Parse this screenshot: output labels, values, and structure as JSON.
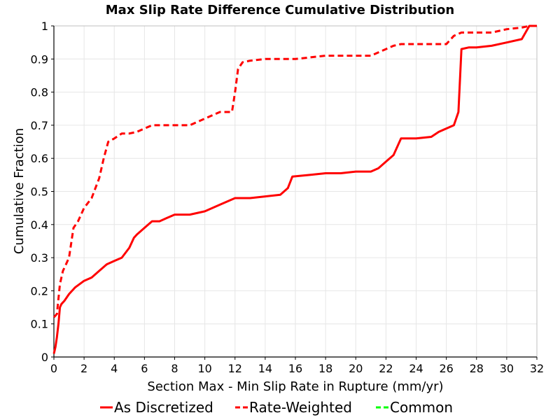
{
  "chart_data": {
    "type": "line",
    "title": "Max Slip Rate Difference Cumulative Distribution",
    "xlabel": "Section Max - Min Slip Rate in Rupture (mm/yr)",
    "ylabel": "Cumulative Fraction",
    "xlim": [
      0,
      32
    ],
    "ylim": [
      0,
      1
    ],
    "x_ticks": [
      0,
      2,
      4,
      6,
      8,
      10,
      12,
      14,
      16,
      18,
      20,
      22,
      24,
      26,
      28,
      30,
      32
    ],
    "y_ticks": [
      0,
      0.1,
      0.2,
      0.3,
      0.4,
      0.5,
      0.6,
      0.7,
      0.8,
      0.9,
      1
    ],
    "grid": true,
    "legend_position": "bottom",
    "colors": {
      "as_discretized": "#ff0000",
      "rate_weighted": "#ff0000",
      "common": "#00ff00",
      "grid": "#e6e6e6",
      "axis": "#000000"
    },
    "series": [
      {
        "name": "As Discretized",
        "style": "solid",
        "x": [
          0,
          0.1,
          0.2,
          0.3,
          0.4,
          0.5,
          0.7,
          1.0,
          1.4,
          2.0,
          2.5,
          3.0,
          3.5,
          4.0,
          4.5,
          5.0,
          5.3,
          5.5,
          6.0,
          6.5,
          7.0,
          7.5,
          8.0,
          9.0,
          10.0,
          11.0,
          12.0,
          13.0,
          14.0,
          15.0,
          15.5,
          15.8,
          17.0,
          18.0,
          19.0,
          20.0,
          21.0,
          21.5,
          22.0,
          22.5,
          23.0,
          24.0,
          25.0,
          25.5,
          26.0,
          26.5,
          26.8,
          27.0,
          27.5,
          28.0,
          29.0,
          30.0,
          31.0,
          31.5,
          32.0
        ],
        "y": [
          0.01,
          0.03,
          0.06,
          0.1,
          0.15,
          0.16,
          0.17,
          0.19,
          0.21,
          0.23,
          0.24,
          0.26,
          0.28,
          0.29,
          0.3,
          0.33,
          0.36,
          0.37,
          0.39,
          0.41,
          0.41,
          0.42,
          0.43,
          0.43,
          0.44,
          0.46,
          0.48,
          0.48,
          0.485,
          0.49,
          0.51,
          0.545,
          0.55,
          0.555,
          0.555,
          0.56,
          0.56,
          0.57,
          0.59,
          0.61,
          0.66,
          0.66,
          0.665,
          0.68,
          0.69,
          0.7,
          0.74,
          0.93,
          0.935,
          0.935,
          0.94,
          0.95,
          0.96,
          1.0,
          1.0
        ]
      },
      {
        "name": "Rate-Weighted",
        "style": "dashed",
        "x": [
          0,
          0.2,
          0.4,
          0.6,
          0.8,
          1.0,
          1.3,
          1.6,
          2.0,
          2.5,
          3.0,
          3.3,
          3.6,
          4.0,
          4.5,
          5.0,
          5.5,
          6.0,
          6.5,
          7.0,
          8.0,
          9.0,
          10.0,
          11.0,
          11.5,
          11.8,
          12.0,
          12.2,
          12.5,
          13.0,
          14.0,
          15.0,
          16.0,
          17.0,
          18.0,
          19.0,
          20.0,
          21.0,
          22.0,
          22.5,
          23.0,
          24.0,
          25.0,
          26.0,
          26.5,
          27.0,
          28.0,
          29.0,
          30.0,
          31.0,
          31.5,
          32.0
        ],
        "y": [
          0.12,
          0.13,
          0.22,
          0.26,
          0.28,
          0.3,
          0.39,
          0.41,
          0.45,
          0.48,
          0.54,
          0.6,
          0.65,
          0.66,
          0.675,
          0.675,
          0.68,
          0.69,
          0.7,
          0.7,
          0.7,
          0.7,
          0.72,
          0.74,
          0.74,
          0.74,
          0.8,
          0.87,
          0.89,
          0.895,
          0.9,
          0.9,
          0.9,
          0.905,
          0.91,
          0.91,
          0.91,
          0.91,
          0.93,
          0.94,
          0.945,
          0.945,
          0.945,
          0.945,
          0.97,
          0.98,
          0.98,
          0.98,
          0.99,
          0.995,
          1.0,
          1.0
        ]
      },
      {
        "name": "Common",
        "style": "dashed",
        "x": [],
        "y": []
      }
    ]
  }
}
